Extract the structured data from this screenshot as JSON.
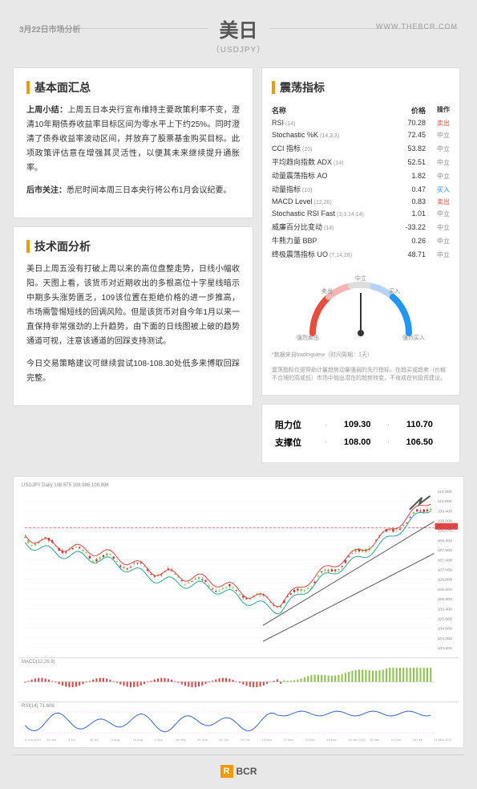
{
  "header": {
    "date": "3月22日市场分析",
    "title": "美日",
    "subtitle": "（USDJPY）",
    "url": "WWW.THEBCR.COM"
  },
  "fundamental": {
    "title": "基本面汇总",
    "para1_label": "上周小结：",
    "para1": "上周五日本央行宣布维持主要政策利率不变，澄清10年期债券收益率目标区间为零水平上下约25%。同时澄清了债券收益率波动区间，并放弃了股票基金购买目标。此项政策评估意在增强其灵活性，以便其未来继续提升通胀率。",
    "para2_label": "后市关注：",
    "para2": "悉尼时间本周三日本央行将公布1月会议纪要。"
  },
  "technical": {
    "title": "技术面分析",
    "para1": "美日上周五没有打破上周以来的高位盘整走势，日线小幅收阳。天图上看，该货币对近期收出的多根高位十字星线暗示中期多头涨势匮乏，109该位置在拒绝价格的进一步推高，市场需警惕短线的回调风险。但是该货币对自今年1月以来一直保持非常强劲的上升趋势，由下面的日线图被上破的趋势通道可视，注意该通道的回踩支持测试。",
    "para2": "今日交易策略建议可继续尝试108-108.30处低多来博取回踩完整。"
  },
  "oscillators": {
    "title": "震荡指标",
    "header_name": "名称",
    "header_price": "价格",
    "header_action": "操作",
    "rows": [
      {
        "name": "RSI",
        "param": "(14)",
        "price": "70.28",
        "action": "卖出",
        "cls": "sell"
      },
      {
        "name": "Stochastic %K",
        "param": "(14,3,3)",
        "price": "72.45",
        "action": "中立",
        "cls": "neutral"
      },
      {
        "name": "CCI 指标",
        "param": "(20)",
        "price": "53.82",
        "action": "中立",
        "cls": "neutral"
      },
      {
        "name": "平均趋向指数 ADX",
        "param": "(14)",
        "price": "52.51",
        "action": "中立",
        "cls": "neutral"
      },
      {
        "name": "动量震荡指标 AO",
        "param": "",
        "price": "1.82",
        "action": "中立",
        "cls": "neutral"
      },
      {
        "name": "动量指标",
        "param": "(10)",
        "price": "0.47",
        "action": "买入",
        "cls": "buy"
      },
      {
        "name": "MACD Level",
        "param": "(12,26)",
        "price": "0.83",
        "action": "卖出",
        "cls": "sell"
      },
      {
        "name": "Stochastic RSI Fast",
        "param": "(3,3,14,14)",
        "price": "1.01",
        "action": "中立",
        "cls": "neutral"
      },
      {
        "name": "威廉百分比变动",
        "param": "(14)",
        "price": "-33.22",
        "action": "中立",
        "cls": "neutral"
      },
      {
        "name": "牛熊力量 BBP",
        "param": "",
        "price": "0.26",
        "action": "中立",
        "cls": "neutral"
      },
      {
        "name": "终极震荡指标 UO",
        "param": "(7,14,28)",
        "price": "48.71",
        "action": "中立",
        "cls": "neutral"
      }
    ],
    "gauge": {
      "labels": {
        "strong_sell": "强烈卖出",
        "sell": "卖出",
        "neutral": "中立",
        "buy": "买入",
        "strong_buy": "强烈买入"
      },
      "needle_angle": 0,
      "sell_color": "#e74c3c",
      "buy_color": "#2196f3",
      "neutral_color": "#cccccc"
    },
    "note1": "*数据来自tradingview（时间周期：1天）",
    "note2": "震荡指标仅是帮助计量趋势动量强弱的先行指标，在趋买或趋卖（价格不合理的高或低）市场中抛出潜在的趋势转变，不肯成在何投资建议。"
  },
  "sr": {
    "resist_label": "阻力位",
    "support_label": "支撑位",
    "r1": "109.30",
    "r2": "110.70",
    "s1": "108.00",
    "s2": "106.50"
  },
  "chart": {
    "label_main": "USDJPY Daily  108.575 108.996 108.896",
    "label_sub1": "MACD(12,26,9)",
    "label_sub2": "RSI(14) 71.608",
    "y_labels": [
      "110.200",
      "110.000",
      "109.400",
      "109.000",
      "108.575",
      "108.200",
      "107.800",
      "107.400",
      "107.000",
      "106.600",
      "106.200",
      "105.800",
      "105.400",
      "105.000",
      "104.600",
      "104.200",
      "103.800"
    ],
    "trend_up_color": "#8bc34a",
    "trend_dn_color": "#d32f2f",
    "ma1_color": "#d44",
    "ma2_color": "#2a8",
    "rsi_color": "#3366cc",
    "bg": "#ffffff",
    "grid": "#eeeeee"
  },
  "footer": {
    "brand": "BCR",
    "logo_letter": "R"
  }
}
